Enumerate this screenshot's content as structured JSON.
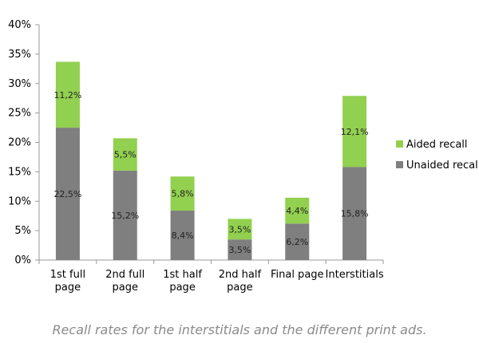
{
  "chart_data": {
    "type": "bar",
    "stacked": true,
    "categories": [
      [
        "1st full",
        "page"
      ],
      [
        "2nd full",
        "page"
      ],
      [
        "1st half",
        "page"
      ],
      [
        "2nd half",
        "page"
      ],
      [
        "Final page"
      ],
      [
        "Interstitials"
      ]
    ],
    "series": [
      {
        "name": "Unaided recall",
        "color": "#7f7f7f",
        "values": [
          22.5,
          15.2,
          8.4,
          3.5,
          6.2,
          15.8
        ],
        "labels": [
          "22,5%",
          "15,2%",
          "8,4%",
          "3,5%",
          "6,2%",
          "15,8%"
        ]
      },
      {
        "name": "Aided recall",
        "color": "#92d050",
        "values": [
          11.2,
          5.5,
          5.8,
          3.5,
          4.4,
          12.1
        ],
        "labels": [
          "11,2%",
          "5,5%",
          "5,8%",
          "3,5%",
          "4,4%",
          "12,1%"
        ]
      }
    ],
    "ylim": [
      0,
      40
    ],
    "yticks": [
      0,
      5,
      10,
      15,
      20,
      25,
      30,
      35,
      40
    ],
    "ytick_labels": [
      "0%",
      "5%",
      "10%",
      "15%",
      "20%",
      "25%",
      "30%",
      "35%",
      "40%"
    ],
    "legend_position": "right",
    "grid": false,
    "axis_color": "#999999"
  },
  "caption": "Recall rates for the interstitials and the different print ads."
}
